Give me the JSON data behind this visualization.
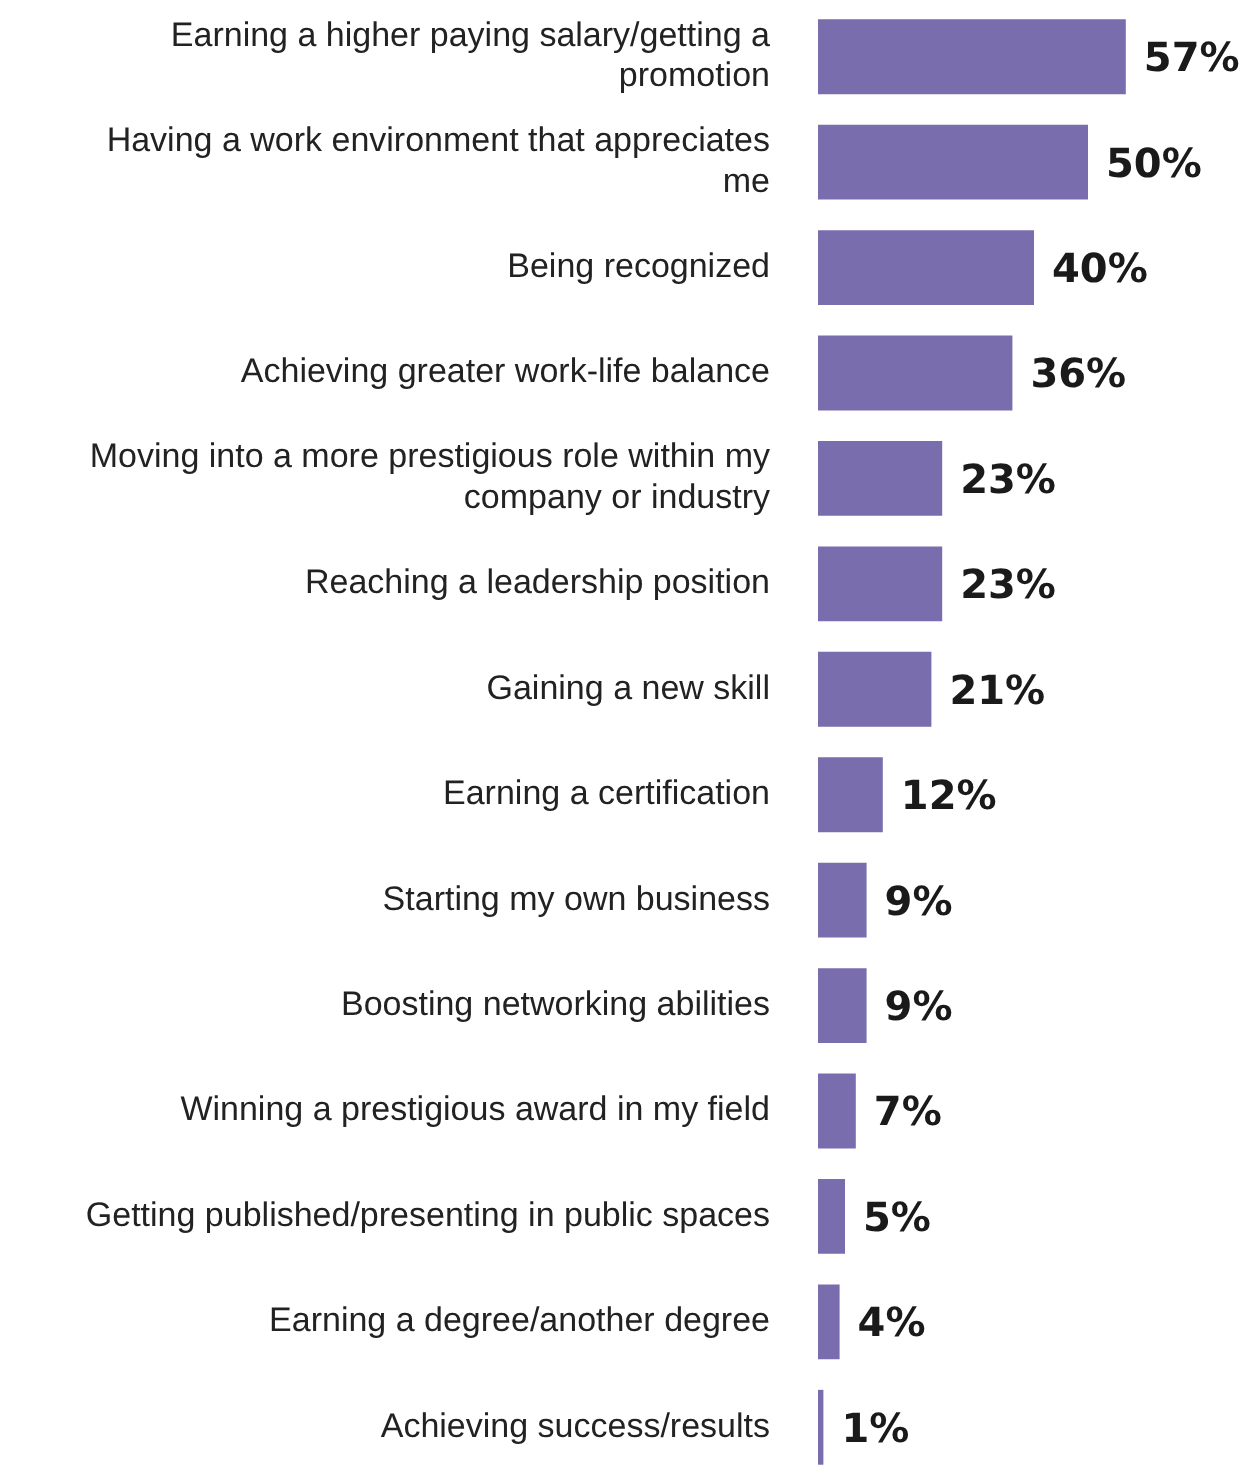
{
  "chart_data": {
    "type": "bar",
    "orientation": "horizontal",
    "color": "#7a6dad",
    "categories": [
      "Earning a higher paying salary/getting a promotion",
      "Having a work environment that appreciates me",
      "Being recognized",
      "Achieving greater work-life balance",
      "Moving into a more prestigious role within my company or industry",
      "Reaching a leadership position",
      "Gaining a new skill",
      "Earning a certification",
      "Starting my own business",
      "Boosting networking abilities",
      "Winning a prestigious award in my field",
      "Getting published/presenting in public spaces",
      "Earning a degree/another degree",
      "Achieving success/results"
    ],
    "values": [
      57,
      50,
      40,
      36,
      23,
      23,
      21,
      12,
      9,
      9,
      7,
      5,
      4,
      1
    ],
    "value_labels": [
      "57%",
      "50%",
      "40%",
      "36%",
      "23%",
      "23%",
      "21%",
      "12%",
      "9%",
      "9%",
      "7%",
      "5%",
      "4%",
      "1%"
    ],
    "legend": false
  }
}
